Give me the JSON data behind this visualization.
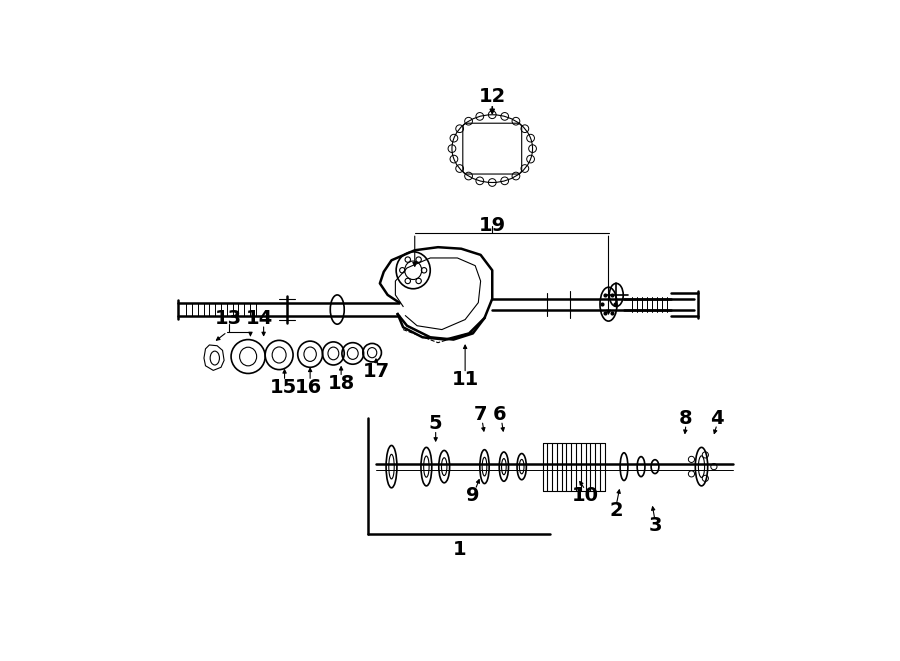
{
  "bg_color": "#ffffff",
  "line_color": "#000000",
  "fig_width": 9.0,
  "fig_height": 6.61,
  "dpi": 100,
  "lw_main": 1.8,
  "lw_med": 1.2,
  "lw_thin": 0.8
}
